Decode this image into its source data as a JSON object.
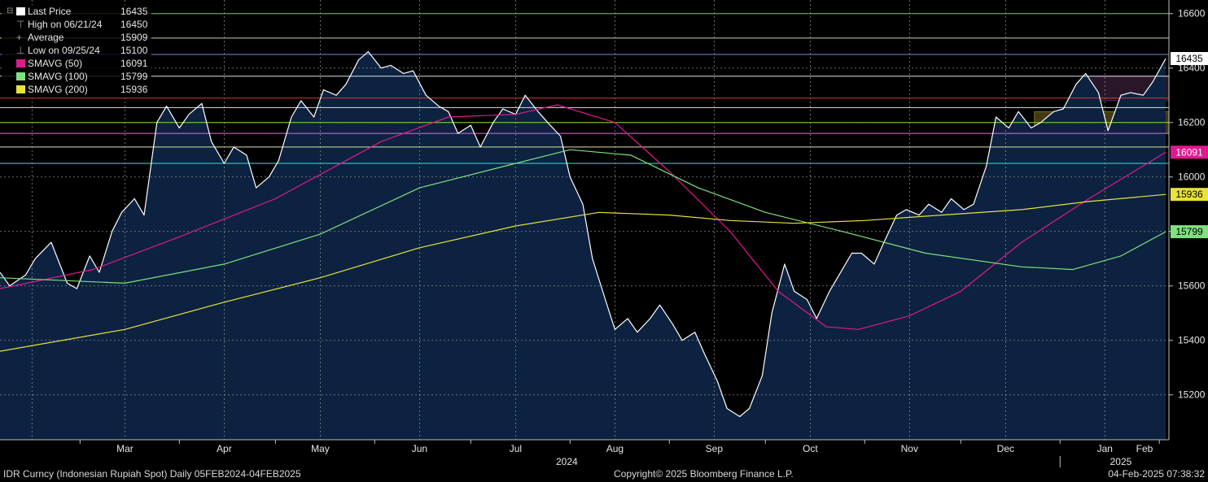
{
  "legend": {
    "last_price": {
      "label": "Last Price",
      "value": "16435"
    },
    "high": {
      "label": "High on 06/21/24",
      "value": "16450"
    },
    "average": {
      "label": "Average",
      "value": "15909"
    },
    "low": {
      "label": "Low on 09/25/24",
      "value": "15100"
    },
    "sma50": {
      "label": "SMAVG (50)",
      "value": "16091"
    },
    "sma100": {
      "label": "SMAVG (100)",
      "value": "15799"
    },
    "sma200": {
      "label": "SMAVG (200)",
      "value": "15936"
    }
  },
  "footer": {
    "left": "IDR Curncy (Indonesian Rupiah Spot)  Daily 05FEB2024-04FEB2025",
    "center": "Copyright© 2025 Bloomberg Finance L.P.",
    "right": "04-Feb-2025 07:38:32"
  },
  "colors": {
    "background": "#000000",
    "area_fill": "#0c2240",
    "price_line": "#ffffff",
    "sma50": "#e0198f",
    "sma100": "#7fe07f",
    "sma200": "#e8e23a",
    "grid": "#8a8a8a"
  },
  "chart_data": {
    "type": "line",
    "x_axis": {
      "months": [
        "Mar",
        "Apr",
        "May",
        "Jun",
        "Jul",
        "Aug",
        "Sep",
        "Oct",
        "Nov",
        "Dec",
        "Jan",
        "Feb"
      ],
      "years": [
        "2024",
        "2025"
      ],
      "range": [
        "2024-02-05",
        "2025-02-04"
      ]
    },
    "y_axis": {
      "ticks": [
        15200,
        15400,
        15600,
        15800,
        16000,
        16200,
        16400,
        16600
      ],
      "range": [
        15035,
        16650
      ],
      "side": "right"
    },
    "price_tags": [
      "16435",
      "16091",
      "15936",
      "15799"
    ],
    "series": [
      {
        "name": "Last Price",
        "points": [
          [
            "2024-02-05",
            15650
          ],
          [
            "2024-02-08",
            15600
          ],
          [
            "2024-02-13",
            15640
          ],
          [
            "2024-02-16",
            15700
          ],
          [
            "2024-02-21",
            15760
          ],
          [
            "2024-02-26",
            15610
          ],
          [
            "2024-02-29",
            15590
          ],
          [
            "2024-03-04",
            15710
          ],
          [
            "2024-03-07",
            15650
          ],
          [
            "2024-03-11",
            15800
          ],
          [
            "2024-03-14",
            15870
          ],
          [
            "2024-03-18",
            15920
          ],
          [
            "2024-03-21",
            15860
          ],
          [
            "2024-03-25",
            16200
          ],
          [
            "2024-03-28",
            16260
          ],
          [
            "2024-04-01",
            16180
          ],
          [
            "2024-04-04",
            16230
          ],
          [
            "2024-04-08",
            16270
          ],
          [
            "2024-04-11",
            16130
          ],
          [
            "2024-04-15",
            16050
          ],
          [
            "2024-04-18",
            16110
          ],
          [
            "2024-04-22",
            16080
          ],
          [
            "2024-04-25",
            15960
          ],
          [
            "2024-04-29",
            16000
          ],
          [
            "2024-05-02",
            16060
          ],
          [
            "2024-05-06",
            16220
          ],
          [
            "2024-05-09",
            16280
          ],
          [
            "2024-05-13",
            16220
          ],
          [
            "2024-05-16",
            16320
          ],
          [
            "2024-05-20",
            16300
          ],
          [
            "2024-05-23",
            16340
          ],
          [
            "2024-05-27",
            16430
          ],
          [
            "2024-05-30",
            16460
          ],
          [
            "2024-06-03",
            16400
          ],
          [
            "2024-06-06",
            16410
          ],
          [
            "2024-06-10",
            16380
          ],
          [
            "2024-06-13",
            16390
          ],
          [
            "2024-06-17",
            16300
          ],
          [
            "2024-06-21",
            16260
          ],
          [
            "2024-06-24",
            16240
          ],
          [
            "2024-06-27",
            16160
          ],
          [
            "2024-07-01",
            16190
          ],
          [
            "2024-07-04",
            16110
          ],
          [
            "2024-07-08",
            16200
          ],
          [
            "2024-07-11",
            16250
          ],
          [
            "2024-07-15",
            16230
          ],
          [
            "2024-07-18",
            16300
          ],
          [
            "2024-07-22",
            16240
          ],
          [
            "2024-07-25",
            16200
          ],
          [
            "2024-07-29",
            16150
          ],
          [
            "2024-08-01",
            16000
          ],
          [
            "2024-08-05",
            15900
          ],
          [
            "2024-08-08",
            15700
          ],
          [
            "2024-08-12",
            15550
          ],
          [
            "2024-08-15",
            15440
          ],
          [
            "2024-08-19",
            15480
          ],
          [
            "2024-08-22",
            15430
          ],
          [
            "2024-08-26",
            15480
          ],
          [
            "2024-08-29",
            15530
          ],
          [
            "2024-09-02",
            15460
          ],
          [
            "2024-09-05",
            15400
          ],
          [
            "2024-09-09",
            15430
          ],
          [
            "2024-09-12",
            15350
          ],
          [
            "2024-09-16",
            15250
          ],
          [
            "2024-09-19",
            15150
          ],
          [
            "2024-09-23",
            15120
          ],
          [
            "2024-09-26",
            15150
          ],
          [
            "2024-09-30",
            15270
          ],
          [
            "2024-10-03",
            15500
          ],
          [
            "2024-10-07",
            15680
          ],
          [
            "2024-10-10",
            15580
          ],
          [
            "2024-10-14",
            15550
          ],
          [
            "2024-10-17",
            15480
          ],
          [
            "2024-10-21",
            15580
          ],
          [
            "2024-10-24",
            15640
          ],
          [
            "2024-10-28",
            15720
          ],
          [
            "2024-10-31",
            15720
          ],
          [
            "2024-11-04",
            15680
          ],
          [
            "2024-11-07",
            15760
          ],
          [
            "2024-11-11",
            15860
          ],
          [
            "2024-11-14",
            15880
          ],
          [
            "2024-11-18",
            15860
          ],
          [
            "2024-11-21",
            15900
          ],
          [
            "2024-11-25",
            15870
          ],
          [
            "2024-11-28",
            15920
          ],
          [
            "2024-12-02",
            15880
          ],
          [
            "2024-12-05",
            15900
          ],
          [
            "2024-12-09",
            16040
          ],
          [
            "2024-12-12",
            16220
          ],
          [
            "2024-12-16",
            16180
          ],
          [
            "2024-12-19",
            16240
          ],
          [
            "2024-12-23",
            16180
          ],
          [
            "2024-12-26",
            16200
          ],
          [
            "2024-12-30",
            16240
          ],
          [
            "2025-01-02",
            16250
          ],
          [
            "2025-01-06",
            16340
          ],
          [
            "2025-01-09",
            16380
          ],
          [
            "2025-01-13",
            16310
          ],
          [
            "2025-01-16",
            16170
          ],
          [
            "2025-01-20",
            16300
          ],
          [
            "2025-01-23",
            16310
          ],
          [
            "2025-01-27",
            16300
          ],
          [
            "2025-01-30",
            16350
          ],
          [
            "2025-02-03",
            16435
          ]
        ]
      },
      {
        "name": "SMAVG (50)",
        "points": [
          [
            "2024-02-05",
            15590
          ],
          [
            "2024-03-05",
            15660
          ],
          [
            "2024-04-01",
            15780
          ],
          [
            "2024-05-01",
            15920
          ],
          [
            "2024-06-03",
            16130
          ],
          [
            "2024-06-24",
            16220
          ],
          [
            "2024-07-15",
            16230
          ],
          [
            "2024-07-28",
            16265
          ],
          [
            "2024-08-15",
            16200
          ],
          [
            "2024-09-01",
            16020
          ],
          [
            "2024-09-20",
            15800
          ],
          [
            "2024-10-05",
            15580
          ],
          [
            "2024-10-20",
            15450
          ],
          [
            "2024-10-30",
            15440
          ],
          [
            "2024-11-15",
            15490
          ],
          [
            "2024-12-01",
            15580
          ],
          [
            "2024-12-20",
            15760
          ],
          [
            "2025-01-10",
            15920
          ],
          [
            "2025-02-03",
            16091
          ]
        ]
      },
      {
        "name": "SMAVG (100)",
        "points": [
          [
            "2024-02-05",
            15630
          ],
          [
            "2024-03-15",
            15610
          ],
          [
            "2024-04-15",
            15680
          ],
          [
            "2024-05-15",
            15790
          ],
          [
            "2024-06-15",
            15960
          ],
          [
            "2024-07-15",
            16050
          ],
          [
            "2024-08-01",
            16100
          ],
          [
            "2024-08-20",
            16080
          ],
          [
            "2024-09-10",
            15960
          ],
          [
            "2024-10-01",
            15870
          ],
          [
            "2024-10-25",
            15800
          ],
          [
            "2024-11-20",
            15720
          ],
          [
            "2024-12-20",
            15670
          ],
          [
            "2025-01-05",
            15660
          ],
          [
            "2025-01-20",
            15710
          ],
          [
            "2025-02-03",
            15799
          ]
        ]
      },
      {
        "name": "SMAVG (200)",
        "points": [
          [
            "2024-02-05",
            15360
          ],
          [
            "2024-03-15",
            15440
          ],
          [
            "2024-04-15",
            15540
          ],
          [
            "2024-05-15",
            15630
          ],
          [
            "2024-06-15",
            15740
          ],
          [
            "2024-07-15",
            15820
          ],
          [
            "2024-08-10",
            15870
          ],
          [
            "2024-09-01",
            15860
          ],
          [
            "2024-09-20",
            15840
          ],
          [
            "2024-10-10",
            15830
          ],
          [
            "2024-11-01",
            15840
          ],
          [
            "2024-11-25",
            15860
          ],
          [
            "2024-12-20",
            15880
          ],
          [
            "2025-01-10",
            15910
          ],
          [
            "2025-02-03",
            15936
          ]
        ]
      }
    ],
    "horizontal_levels": [
      {
        "value": 16600,
        "color": "#7fbf5f"
      },
      {
        "value": 16510,
        "color": "#cfcf9a"
      },
      {
        "value": 16450,
        "color": "#7f7fdf"
      },
      {
        "value": 16370,
        "color": "#e0e0e0"
      },
      {
        "value": 16290,
        "color": "#e03030"
      },
      {
        "value": 16255,
        "color": "#e0e0e0"
      },
      {
        "value": 16200,
        "color": "#7fdf3f"
      },
      {
        "value": 16160,
        "color": "#e070e0"
      },
      {
        "value": 16110,
        "color": "#e0e0a0"
      },
      {
        "value": 16050,
        "color": "#3fdfdf"
      }
    ],
    "highlight_zones": [
      {
        "from": "2024-12-24",
        "to": "2025-02-04",
        "y_from": 16160,
        "y_to": 16240,
        "color": "#7a6a1f"
      },
      {
        "from": "2025-01-09",
        "to": "2025-02-04",
        "y_from": 16280,
        "y_to": 16370,
        "color": "#4a2a4a"
      }
    ]
  }
}
